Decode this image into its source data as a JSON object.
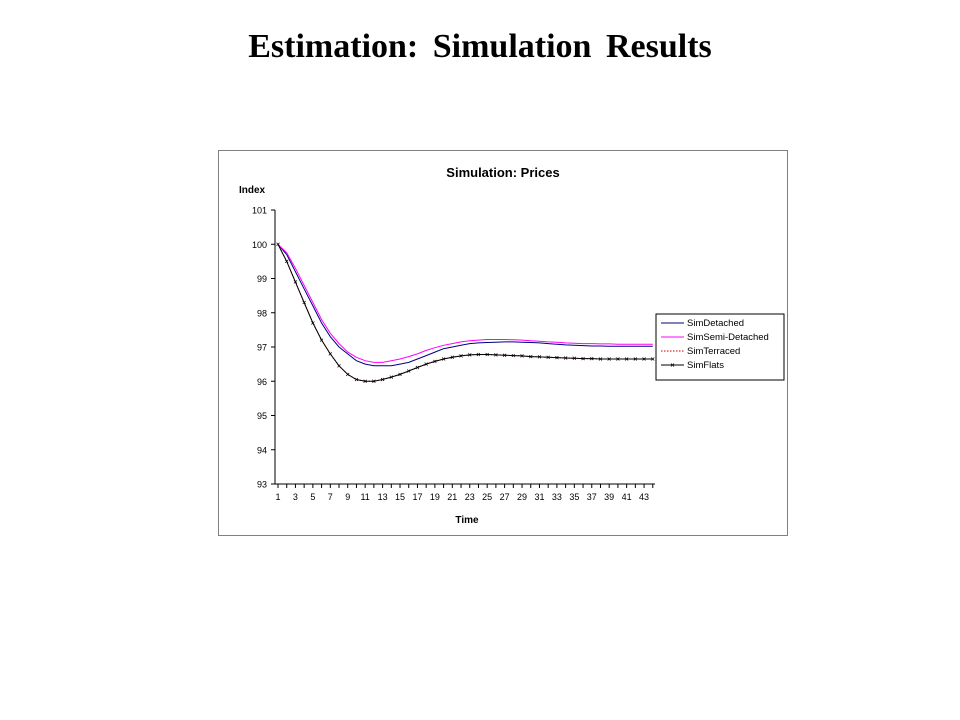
{
  "slide": {
    "title": "Estimation:  Simulation  Results"
  },
  "chart_data": {
    "type": "line",
    "title": "Simulation: Prices",
    "ylabel": "Index",
    "xlabel": "Time",
    "ylim": [
      93,
      101
    ],
    "yticks": [
      93,
      94,
      95,
      96,
      97,
      98,
      99,
      100,
      101
    ],
    "xticks": [
      1,
      3,
      5,
      7,
      9,
      11,
      13,
      15,
      17,
      19,
      21,
      23,
      25,
      27,
      29,
      31,
      33,
      35,
      37,
      39,
      41,
      43
    ],
    "x": [
      1,
      2,
      3,
      4,
      5,
      6,
      7,
      8,
      9,
      10,
      11,
      12,
      13,
      14,
      15,
      16,
      17,
      18,
      19,
      20,
      21,
      22,
      23,
      24,
      25,
      26,
      27,
      28,
      29,
      30,
      31,
      32,
      33,
      34,
      35,
      36,
      37,
      38,
      39,
      40,
      41,
      42,
      43,
      44
    ],
    "legend_position": "right",
    "series": [
      {
        "name": "SimDetached",
        "color": "#000080",
        "style": "solid",
        "values": [
          100.0,
          99.7,
          99.2,
          98.7,
          98.2,
          97.7,
          97.3,
          97.0,
          96.8,
          96.6,
          96.5,
          96.45,
          96.45,
          96.45,
          96.5,
          96.55,
          96.65,
          96.75,
          96.85,
          96.95,
          97.0,
          97.05,
          97.1,
          97.12,
          97.13,
          97.14,
          97.15,
          97.15,
          97.14,
          97.13,
          97.12,
          97.1,
          97.08,
          97.06,
          97.05,
          97.04,
          97.03,
          97.03,
          97.02,
          97.02,
          97.02,
          97.02,
          97.02,
          97.02
        ]
      },
      {
        "name": "SimSemi-Detached",
        "color": "#ff00ff",
        "style": "solid",
        "values": [
          100.0,
          99.75,
          99.3,
          98.8,
          98.3,
          97.8,
          97.4,
          97.1,
          96.85,
          96.7,
          96.6,
          96.55,
          96.55,
          96.6,
          96.65,
          96.72,
          96.8,
          96.9,
          96.98,
          97.05,
          97.1,
          97.15,
          97.18,
          97.2,
          97.22,
          97.22,
          97.22,
          97.21,
          97.2,
          97.18,
          97.17,
          97.15,
          97.14,
          97.12,
          97.11,
          97.1,
          97.1,
          97.09,
          97.09,
          97.08,
          97.08,
          97.08,
          97.08,
          97.08
        ]
      },
      {
        "name": "SimTerraced",
        "color": "#cc0000",
        "style": "dotted",
        "values": [
          100.0,
          99.5,
          98.9,
          98.3,
          97.7,
          97.2,
          96.8,
          96.45,
          96.2,
          96.05,
          96.0,
          96.0,
          96.05,
          96.12,
          96.2,
          96.3,
          96.4,
          96.5,
          96.58,
          96.65,
          96.7,
          96.74,
          96.77,
          96.78,
          96.78,
          96.77,
          96.76,
          96.75,
          96.74,
          96.72,
          96.71,
          96.7,
          96.69,
          96.68,
          96.67,
          96.66,
          96.66,
          96.65,
          96.65,
          96.65,
          96.65,
          96.65,
          96.65,
          96.65
        ]
      },
      {
        "name": "SimFlats",
        "color": "#000000",
        "style": "solid-markers",
        "values": [
          100.0,
          99.5,
          98.9,
          98.3,
          97.7,
          97.2,
          96.8,
          96.45,
          96.2,
          96.05,
          96.0,
          96.0,
          96.05,
          96.12,
          96.2,
          96.3,
          96.4,
          96.5,
          96.58,
          96.65,
          96.7,
          96.74,
          96.77,
          96.78,
          96.78,
          96.77,
          96.76,
          96.75,
          96.74,
          96.72,
          96.71,
          96.7,
          96.69,
          96.68,
          96.67,
          96.66,
          96.66,
          96.65,
          96.65,
          96.65,
          96.65,
          96.65,
          96.65,
          96.65
        ]
      }
    ]
  }
}
